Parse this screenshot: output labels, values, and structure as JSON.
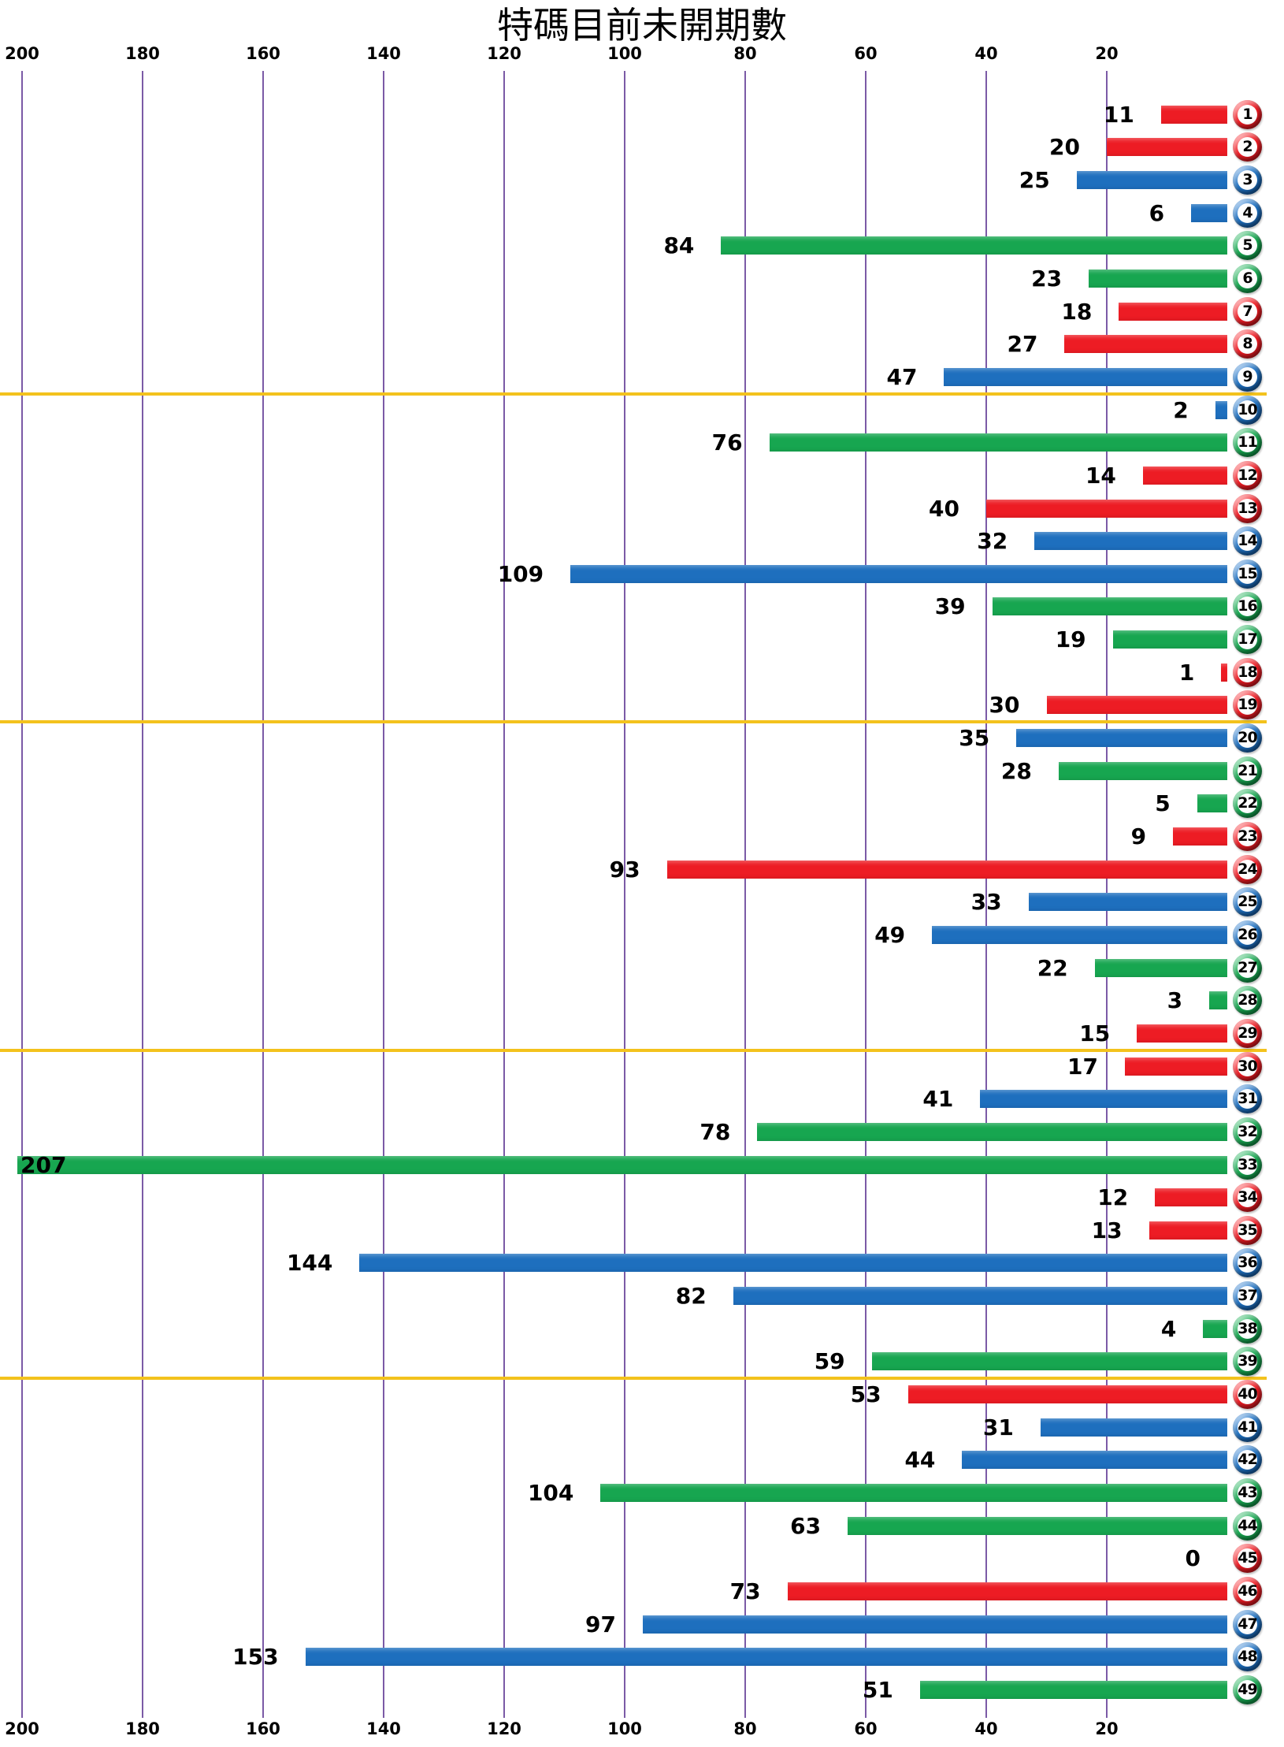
{
  "title": "特碼目前未開期數",
  "colors": {
    "red": "#ED1C24",
    "blue": "#1E6FBE",
    "green": "#17A650",
    "gridline": "#7B5AA6",
    "separator": "#F3C21D",
    "label": "#000000",
    "background": "#FFFFFF"
  },
  "chart_data": {
    "type": "bar",
    "orientation": "horizontal",
    "title": "特碼目前未開期數",
    "xlabel": "",
    "ylabel": "",
    "value_axis": {
      "min": 0,
      "max": 200,
      "ticks": [
        200,
        180,
        160,
        140,
        120,
        100,
        80,
        60,
        40,
        20
      ],
      "tick_label_positions": "top-and-bottom",
      "direction": "right-to-left"
    },
    "grid": true,
    "legend": "none",
    "group_separators_after_rows": [
      9,
      19,
      29,
      39
    ],
    "categories": [
      1,
      2,
      3,
      4,
      5,
      6,
      7,
      8,
      9,
      10,
      11,
      12,
      13,
      14,
      15,
      16,
      17,
      18,
      19,
      20,
      21,
      22,
      23,
      24,
      25,
      26,
      27,
      28,
      29,
      30,
      31,
      32,
      33,
      34,
      35,
      36,
      37,
      38,
      39,
      40,
      41,
      42,
      43,
      44,
      45,
      46,
      47,
      48,
      49
    ],
    "values": [
      11,
      20,
      25,
      6,
      84,
      23,
      18,
      27,
      47,
      2,
      76,
      14,
      40,
      32,
      109,
      39,
      19,
      1,
      30,
      35,
      28,
      5,
      9,
      93,
      33,
      49,
      22,
      3,
      15,
      17,
      41,
      78,
      207,
      12,
      13,
      144,
      82,
      4,
      59,
      53,
      31,
      44,
      104,
      63,
      0,
      73,
      97,
      153,
      51
    ],
    "items": [
      {
        "number": 1,
        "value": 11,
        "color": "red"
      },
      {
        "number": 2,
        "value": 20,
        "color": "red"
      },
      {
        "number": 3,
        "value": 25,
        "color": "blue"
      },
      {
        "number": 4,
        "value": 6,
        "color": "blue"
      },
      {
        "number": 5,
        "value": 84,
        "color": "green"
      },
      {
        "number": 6,
        "value": 23,
        "color": "green"
      },
      {
        "number": 7,
        "value": 18,
        "color": "red"
      },
      {
        "number": 8,
        "value": 27,
        "color": "red"
      },
      {
        "number": 9,
        "value": 47,
        "color": "blue"
      },
      {
        "number": 10,
        "value": 2,
        "color": "blue"
      },
      {
        "number": 11,
        "value": 76,
        "color": "green"
      },
      {
        "number": 12,
        "value": 14,
        "color": "red"
      },
      {
        "number": 13,
        "value": 40,
        "color": "red"
      },
      {
        "number": 14,
        "value": 32,
        "color": "blue"
      },
      {
        "number": 15,
        "value": 109,
        "color": "blue"
      },
      {
        "number": 16,
        "value": 39,
        "color": "green"
      },
      {
        "number": 17,
        "value": 19,
        "color": "green"
      },
      {
        "number": 18,
        "value": 1,
        "color": "red"
      },
      {
        "number": 19,
        "value": 30,
        "color": "red"
      },
      {
        "number": 20,
        "value": 35,
        "color": "blue"
      },
      {
        "number": 21,
        "value": 28,
        "color": "green"
      },
      {
        "number": 22,
        "value": 5,
        "color": "green"
      },
      {
        "number": 23,
        "value": 9,
        "color": "red"
      },
      {
        "number": 24,
        "value": 93,
        "color": "red"
      },
      {
        "number": 25,
        "value": 33,
        "color": "blue"
      },
      {
        "number": 26,
        "value": 49,
        "color": "blue"
      },
      {
        "number": 27,
        "value": 22,
        "color": "green"
      },
      {
        "number": 28,
        "value": 3,
        "color": "green"
      },
      {
        "number": 29,
        "value": 15,
        "color": "red"
      },
      {
        "number": 30,
        "value": 17,
        "color": "red"
      },
      {
        "number": 31,
        "value": 41,
        "color": "blue"
      },
      {
        "number": 32,
        "value": 78,
        "color": "green"
      },
      {
        "number": 33,
        "value": 207,
        "color": "green"
      },
      {
        "number": 34,
        "value": 12,
        "color": "red"
      },
      {
        "number": 35,
        "value": 13,
        "color": "red"
      },
      {
        "number": 36,
        "value": 144,
        "color": "blue"
      },
      {
        "number": 37,
        "value": 82,
        "color": "blue"
      },
      {
        "number": 38,
        "value": 4,
        "color": "green"
      },
      {
        "number": 39,
        "value": 59,
        "color": "green"
      },
      {
        "number": 40,
        "value": 53,
        "color": "red"
      },
      {
        "number": 41,
        "value": 31,
        "color": "blue"
      },
      {
        "number": 42,
        "value": 44,
        "color": "blue"
      },
      {
        "number": 43,
        "value": 104,
        "color": "green"
      },
      {
        "number": 44,
        "value": 63,
        "color": "green"
      },
      {
        "number": 45,
        "value": 0,
        "color": "red"
      },
      {
        "number": 46,
        "value": 73,
        "color": "red"
      },
      {
        "number": 47,
        "value": 97,
        "color": "blue"
      },
      {
        "number": 48,
        "value": 153,
        "color": "blue"
      },
      {
        "number": 49,
        "value": 51,
        "color": "green"
      }
    ]
  }
}
